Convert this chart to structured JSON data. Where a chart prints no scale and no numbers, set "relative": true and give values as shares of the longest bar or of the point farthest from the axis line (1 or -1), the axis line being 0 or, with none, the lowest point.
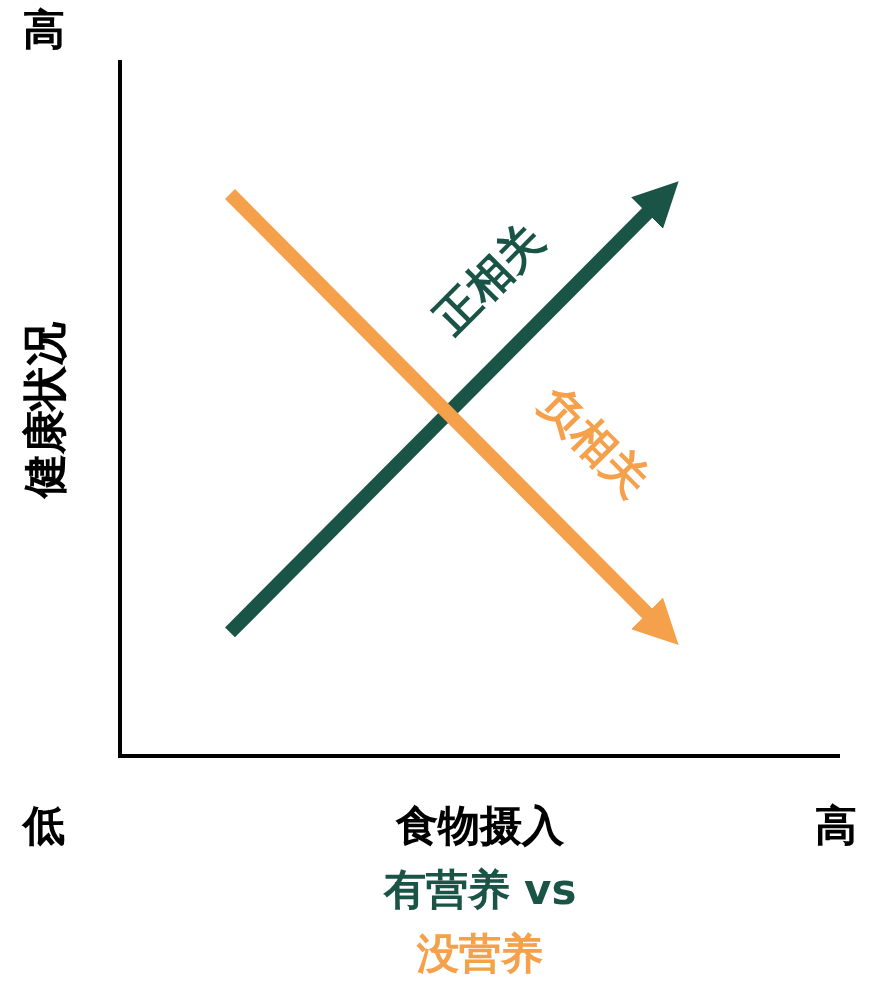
{
  "chart_data": {
    "type": "line",
    "relative": true,
    "categories": [
      null,
      null
    ],
    "series": [
      {
        "name": "正相关",
        "color": "#1a5446",
        "values": [
          0.22,
          1
        ]
      },
      {
        "name": "负相关",
        "color": "#f5a04a",
        "values": [
          1,
          0.22
        ]
      }
    ],
    "xlabel": "食物摄入",
    "ylabel": "健康状况",
    "annotations": [
      "有营养 vs",
      "没营养",
      "高",
      "低",
      "高"
    ]
  }
}
